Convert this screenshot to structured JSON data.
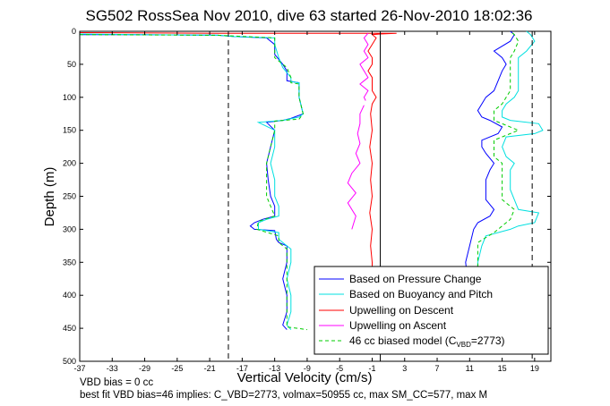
{
  "chart_data": {
    "type": "line",
    "title": "SG502 RossSea Nov 2010, dive 63 started 26-Nov-2010 18:02:36",
    "xlabel": "Vertical Velocity (cm/s)",
    "ylabel": "Depth (m)",
    "xlim": [
      -37,
      21
    ],
    "ylim": [
      0,
      500
    ],
    "y_reversed": true,
    "x_ticks": [
      -37,
      -33,
      -29,
      -25,
      -21,
      -17,
      -13,
      -9,
      -5,
      -1,
      3,
      7,
      11,
      15,
      19
    ],
    "y_ticks": [
      0,
      50,
      100,
      150,
      200,
      250,
      300,
      350,
      400,
      450,
      500
    ],
    "grid": false,
    "legend_position": "bottom-right",
    "reference_lines": [
      {
        "style": "dashed",
        "x": -18.7
      },
      {
        "style": "solid",
        "x": 0
      },
      {
        "style": "dashed",
        "x": 18.7
      }
    ],
    "series": [
      {
        "name": "Based on Pressure Change",
        "color": "#0000ff",
        "style": "solid",
        "descent": [
          [
            -37,
            5
          ],
          [
            -30,
            5
          ],
          [
            -20,
            6
          ],
          [
            -18,
            8
          ],
          [
            -14,
            10
          ],
          [
            -13,
            20
          ],
          [
            -13,
            35
          ],
          [
            -12,
            50
          ],
          [
            -11.5,
            60
          ],
          [
            -11.5,
            75
          ],
          [
            -10,
            78
          ],
          [
            -10,
            100
          ],
          [
            -9.5,
            125
          ],
          [
            -11,
            132
          ],
          [
            -12,
            135
          ],
          [
            -14,
            138
          ],
          [
            -13,
            150
          ],
          [
            -13.5,
            175
          ],
          [
            -14,
            200
          ],
          [
            -13.8,
            225
          ],
          [
            -13.5,
            250
          ],
          [
            -13,
            265
          ],
          [
            -13,
            280
          ],
          [
            -14.5,
            285
          ],
          [
            -15.5,
            290
          ],
          [
            -16,
            295
          ],
          [
            -15.5,
            300
          ],
          [
            -13,
            302
          ],
          [
            -12.8,
            315
          ],
          [
            -12.5,
            320
          ],
          [
            -11.5,
            325
          ],
          [
            -11.5,
            350
          ],
          [
            -12,
            375
          ],
          [
            -11.5,
            400
          ],
          [
            -11.5,
            425
          ],
          [
            -12,
            445
          ],
          [
            -11.5,
            452
          ]
        ],
        "ascent": [
          [
            11,
            452
          ],
          [
            11,
            400
          ],
          [
            10.5,
            350
          ],
          [
            11,
            325
          ],
          [
            11.5,
            300
          ],
          [
            12,
            290
          ],
          [
            13.5,
            280
          ],
          [
            14,
            270
          ],
          [
            13,
            255
          ],
          [
            13,
            240
          ],
          [
            13,
            225
          ],
          [
            13.5,
            210
          ],
          [
            14,
            200
          ],
          [
            13,
            185
          ],
          [
            12.5,
            175
          ],
          [
            12.5,
            165
          ],
          [
            14.5,
            155
          ],
          [
            15,
            145
          ],
          [
            13.5,
            135
          ],
          [
            12.5,
            130
          ],
          [
            12,
            120
          ],
          [
            12.5,
            110
          ],
          [
            13,
            100
          ],
          [
            14,
            90
          ],
          [
            14.5,
            75
          ],
          [
            15,
            60
          ],
          [
            15.5,
            50
          ],
          [
            15,
            40
          ],
          [
            14,
            30
          ],
          [
            16,
            15
          ],
          [
            16.5,
            5
          ],
          [
            16,
            0
          ]
        ]
      },
      {
        "name": "Based on Buoyancy and Pitch",
        "color": "#00e0e0",
        "style": "solid",
        "descent": [
          [
            -37,
            4
          ],
          [
            -30,
            5
          ],
          [
            -20,
            6
          ],
          [
            -18,
            8
          ],
          [
            -13,
            10
          ],
          [
            -13,
            20
          ],
          [
            -12.5,
            40
          ],
          [
            -12,
            55
          ],
          [
            -11,
            70
          ],
          [
            -11,
            76
          ],
          [
            -10,
            78
          ],
          [
            -10,
            100
          ],
          [
            -9.5,
            125
          ],
          [
            -10,
            130
          ],
          [
            -12,
            135
          ],
          [
            -15,
            138
          ],
          [
            -13,
            150
          ],
          [
            -13,
            175
          ],
          [
            -13.5,
            200
          ],
          [
            -13,
            225
          ],
          [
            -13,
            250
          ],
          [
            -12.5,
            265
          ],
          [
            -12.5,
            280
          ],
          [
            -14,
            285
          ],
          [
            -15,
            290
          ],
          [
            -15,
            300
          ],
          [
            -12.5,
            305
          ],
          [
            -12.5,
            315
          ],
          [
            -12,
            320
          ],
          [
            -11,
            330
          ],
          [
            -11,
            350
          ],
          [
            -11.5,
            375
          ],
          [
            -11,
            400
          ],
          [
            -11,
            425
          ],
          [
            -11.5,
            445
          ],
          [
            -11,
            452
          ]
        ],
        "ascent": [
          [
            12,
            452
          ],
          [
            12,
            400
          ],
          [
            12,
            350
          ],
          [
            12.5,
            325
          ],
          [
            13,
            310
          ],
          [
            16,
            300
          ],
          [
            17,
            295
          ],
          [
            19,
            290
          ],
          [
            19.5,
            275
          ],
          [
            17,
            270
          ],
          [
            16.5,
            255
          ],
          [
            16,
            240
          ],
          [
            16,
            225
          ],
          [
            16,
            210
          ],
          [
            16.5,
            200
          ],
          [
            15.5,
            190
          ],
          [
            15,
            175
          ],
          [
            15.5,
            160
          ],
          [
            19,
            155
          ],
          [
            20,
            150
          ],
          [
            19.5,
            140
          ],
          [
            16,
            135
          ],
          [
            15,
            130
          ],
          [
            15,
            120
          ],
          [
            15.5,
            110
          ],
          [
            16.5,
            100
          ],
          [
            17,
            90
          ],
          [
            17,
            75
          ],
          [
            17,
            60
          ],
          [
            17,
            50
          ],
          [
            17,
            40
          ],
          [
            18,
            30
          ],
          [
            19,
            15
          ],
          [
            18.5,
            5
          ],
          [
            18,
            0
          ]
        ]
      },
      {
        "name": "Upwelling on Descent",
        "color": "#ff0000",
        "style": "solid",
        "descent": [
          [
            -37,
            2
          ],
          [
            -20,
            3
          ],
          [
            -5,
            3
          ],
          [
            2,
            3
          ],
          [
            0,
            4
          ],
          [
            -1,
            5
          ],
          [
            -0.5,
            10
          ],
          [
            -1,
            20
          ],
          [
            -1.5,
            30
          ],
          [
            -1,
            40
          ],
          [
            -1,
            50
          ],
          [
            -1.5,
            60
          ],
          [
            -1,
            70
          ],
          [
            -1,
            80
          ],
          [
            -1,
            90
          ],
          [
            -0.5,
            100
          ],
          [
            -1,
            110
          ],
          [
            -1.2,
            125
          ],
          [
            -1,
            150
          ],
          [
            -1.3,
            175
          ],
          [
            -1,
            200
          ],
          [
            -1.2,
            225
          ],
          [
            -1,
            250
          ],
          [
            -1.3,
            275
          ],
          [
            -1,
            300
          ],
          [
            -1.2,
            325
          ],
          [
            -1,
            350
          ],
          [
            -1,
            360
          ]
        ]
      },
      {
        "name": "Upwelling on Ascent",
        "color": "#ff00ff",
        "style": "solid",
        "ascent": [
          [
            -1.8,
            105
          ],
          [
            -2,
            100
          ],
          [
            -1.5,
            90
          ],
          [
            -2.5,
            80
          ],
          [
            -1.5,
            70
          ],
          [
            -2,
            60
          ],
          [
            -2.5,
            50
          ],
          [
            -1.5,
            40
          ],
          [
            -2,
            30
          ],
          [
            -1.5,
            20
          ],
          [
            -2,
            10
          ],
          [
            -1.5,
            3
          ]
        ],
        "ascent_deep": [
          [
            -3.5,
            300
          ],
          [
            -3,
            280
          ],
          [
            -4,
            260
          ],
          [
            -3,
            245
          ],
          [
            -4,
            230
          ],
          [
            -3.5,
            215
          ],
          [
            -2.5,
            200
          ],
          [
            -3,
            185
          ],
          [
            -2.5,
            170
          ],
          [
            -2.8,
            155
          ],
          [
            -2.5,
            140
          ],
          [
            -2.5,
            125
          ],
          [
            -2,
            112
          ]
        ]
      },
      {
        "name": "46 cc biased model (C_VBD=2773)",
        "color": "#00cc00",
        "style": "dashed",
        "descent": [
          [
            -37,
            5
          ],
          [
            -20,
            6
          ],
          [
            -13,
            10
          ],
          [
            -13,
            20
          ],
          [
            -13,
            40
          ],
          [
            -11.5,
            55
          ],
          [
            -11,
            70
          ],
          [
            -11,
            78
          ],
          [
            -10,
            80
          ],
          [
            -10,
            100
          ],
          [
            -9.5,
            125
          ],
          [
            -10,
            133
          ],
          [
            -13,
            136
          ],
          [
            -13,
            150
          ],
          [
            -13.5,
            175
          ],
          [
            -14,
            200
          ],
          [
            -14,
            225
          ],
          [
            -14,
            250
          ],
          [
            -13.5,
            265
          ],
          [
            -13,
            280
          ],
          [
            -15,
            288
          ],
          [
            -15.2,
            300
          ],
          [
            -12.5,
            310
          ],
          [
            -12.5,
            320
          ],
          [
            -11.5,
            330
          ],
          [
            -11.5,
            350
          ],
          [
            -11.5,
            375
          ],
          [
            -11.5,
            400
          ],
          [
            -11.5,
            425
          ],
          [
            -11.5,
            448
          ],
          [
            -9,
            452
          ]
        ],
        "ascent": [
          [
            12,
            452
          ],
          [
            12,
            400
          ],
          [
            12,
            350
          ],
          [
            12,
            320
          ],
          [
            14,
            305
          ],
          [
            15,
            295
          ],
          [
            16,
            285
          ],
          [
            16.5,
            270
          ],
          [
            15,
            255
          ],
          [
            15,
            240
          ],
          [
            15,
            225
          ],
          [
            15,
            210
          ],
          [
            15,
            200
          ],
          [
            14,
            190
          ],
          [
            14,
            180
          ],
          [
            14,
            165
          ],
          [
            16,
            155
          ],
          [
            17,
            150
          ],
          [
            15,
            140
          ],
          [
            14,
            135
          ],
          [
            14,
            120
          ],
          [
            15,
            110
          ],
          [
            15.5,
            100
          ],
          [
            16,
            90
          ],
          [
            16,
            75
          ],
          [
            16,
            60
          ],
          [
            16,
            50
          ],
          [
            16,
            40
          ],
          [
            16.5,
            30
          ],
          [
            17,
            15
          ],
          [
            16.5,
            5
          ],
          [
            16,
            0
          ]
        ]
      }
    ]
  },
  "legend": [
    {
      "label": "Based on Pressure Change"
    },
    {
      "label": "Based on Buoyancy and Pitch"
    },
    {
      "label": "Upwelling on Descent"
    },
    {
      "label": "Upwelling on Ascent"
    },
    {
      "label_main": "46 cc biased model (C",
      "label_sub": "VBD",
      "label_tail": "=2773)"
    }
  ],
  "footer": {
    "line1": "VBD bias = 0 cc",
    "line2": "best fit VBD bias=46 implies: C_VBD=2773, volmax=50955 cc, max SM_CC=577, max M"
  }
}
